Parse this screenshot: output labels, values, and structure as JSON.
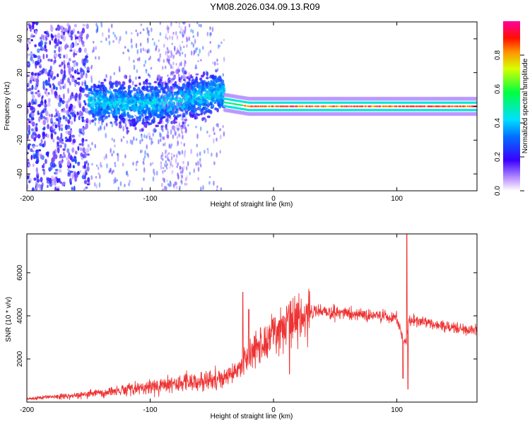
{
  "title": "YM08.2026.034.09.13.R09",
  "chart_data": [
    {
      "type": "heatmap",
      "xlabel": "Height of straight line (km)",
      "ylabel": "Frequency (Hz)",
      "xlim": [
        -200,
        165
      ],
      "ylim": [
        -50,
        50
      ],
      "xticks": [
        -200,
        -100,
        0,
        100
      ],
      "yticks": [
        -40,
        -20,
        0,
        20,
        40
      ],
      "colorbar": {
        "label": "Normalized spectral amplitude",
        "range": [
          0,
          1
        ],
        "ticks": [
          0.0,
          0.2,
          0.4,
          0.6,
          0.8
        ],
        "tick_labels": [
          "0.0",
          "0.2",
          "0.4",
          "0.6",
          "0.8"
        ]
      },
      "features": [
        {
          "x_range": [
            -200,
            -150
          ],
          "freq_range": [
            -50,
            50
          ],
          "amplitude": 0.15,
          "pattern": "scattered noise"
        },
        {
          "x_range": [
            -150,
            -40
          ],
          "freq_center": 3,
          "freq_spread": 10,
          "amplitude": 0.3,
          "pattern": "broadband blob"
        },
        {
          "x_range": [
            -90,
            -70
          ],
          "freq_range": [
            -50,
            50
          ],
          "amplitude": 0.1,
          "pattern": "faint scatter"
        },
        {
          "x_range": [
            -40,
            165
          ],
          "freq_center": 0,
          "amplitude": 0.95,
          "pattern": "narrow carrier line"
        }
      ]
    },
    {
      "type": "line",
      "xlabel": "Height of straight line (km)",
      "ylabel": "SNR (10 * v/v)",
      "xlim": [
        -200,
        165
      ],
      "ylim": [
        0,
        7800
      ],
      "xticks": [
        -200,
        -100,
        0,
        100
      ],
      "yticks": [
        2000,
        4000,
        6000
      ],
      "color": "#ee3333",
      "x": [
        -200,
        -180,
        -160,
        -140,
        -120,
        -100,
        -80,
        -60,
        -40,
        -30,
        -25,
        -20,
        -10,
        0,
        10,
        20,
        30,
        40,
        60,
        80,
        90,
        100,
        105,
        108,
        110,
        120,
        140,
        165
      ],
      "values": [
        150,
        230,
        320,
        420,
        560,
        700,
        880,
        960,
        1100,
        1450,
        1900,
        2250,
        2700,
        3100,
        3500,
        3850,
        4150,
        4200,
        4100,
        4000,
        3950,
        3900,
        2900,
        2800,
        3800,
        3700,
        3500,
        3300
      ],
      "spikes": [
        {
          "x": -25,
          "value": 5100
        },
        {
          "x": -20,
          "value": 4300
        },
        {
          "x": 13,
          "value": 1300
        },
        {
          "x": 105,
          "value": 1100
        },
        {
          "x": 108,
          "value": 7800
        },
        {
          "x": 109,
          "value": 600
        }
      ]
    }
  ]
}
